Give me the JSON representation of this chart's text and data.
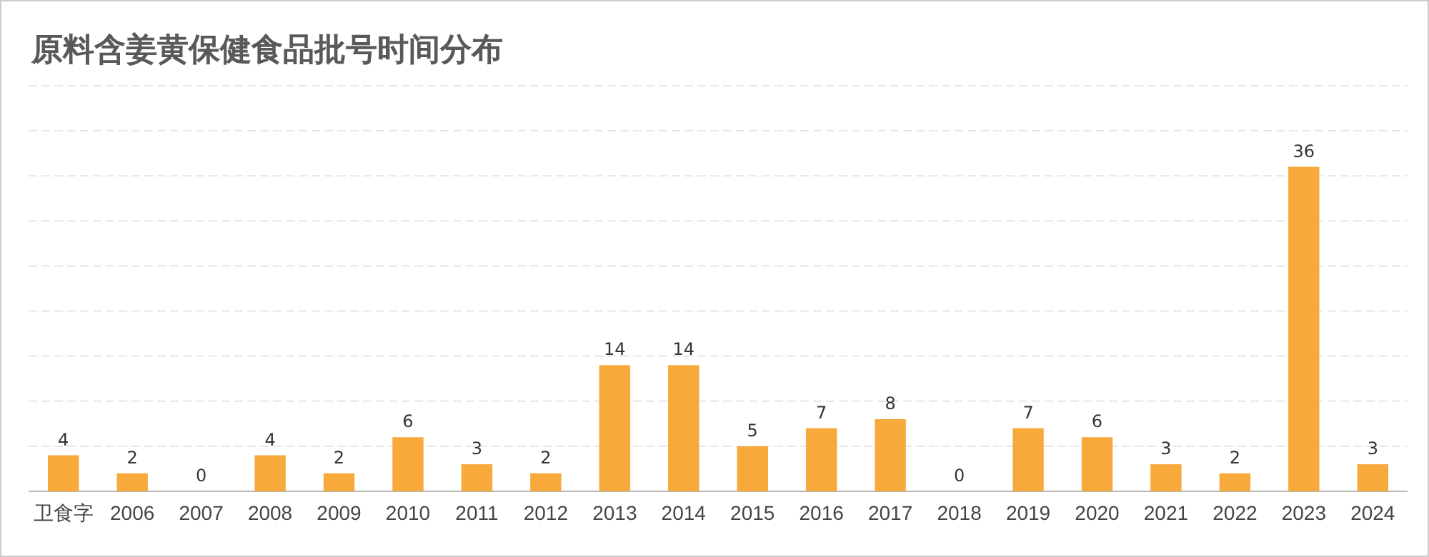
{
  "chart_data": {
    "type": "bar",
    "title": "原料含姜黄保健食品批号时间分布",
    "categories": [
      "卫食字",
      "2006",
      "2007",
      "2008",
      "2009",
      "2010",
      "2011",
      "2012",
      "2013",
      "2014",
      "2015",
      "2016",
      "2017",
      "2018",
      "2019",
      "2020",
      "2021",
      "2022",
      "2023",
      "2024"
    ],
    "values": [
      4,
      2,
      0,
      4,
      2,
      6,
      3,
      2,
      14,
      14,
      5,
      7,
      8,
      0,
      7,
      6,
      3,
      2,
      36,
      3
    ],
    "color": "#f7a93b",
    "ylim": [
      0,
      45
    ],
    "yticks": [
      {
        "value": 0,
        "label": null
      },
      {
        "value": 5,
        "label": null
      },
      {
        "value": 10,
        "label": null
      },
      {
        "value": 15,
        "label": null
      },
      {
        "value": 20,
        "label": null
      },
      {
        "value": 25,
        "label": null
      },
      {
        "value": 30,
        "label": null
      },
      {
        "value": 35,
        "label": null
      },
      {
        "value": 40,
        "label": null
      },
      {
        "value": 45,
        "label": null
      }
    ],
    "tick_labels": "x",
    "grid": "y",
    "data_labels": true
  }
}
